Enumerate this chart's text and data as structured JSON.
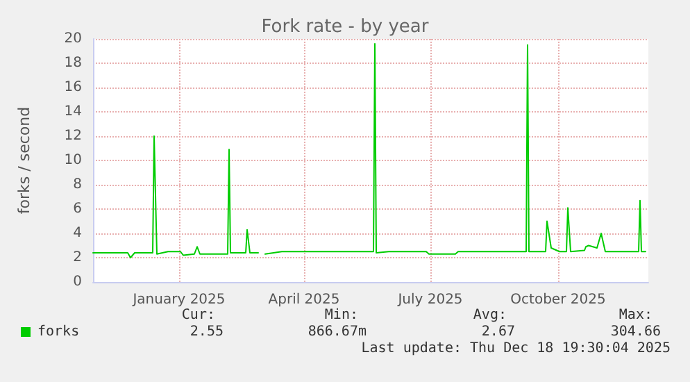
{
  "chart_data": {
    "type": "line",
    "title": "Fork rate - by year",
    "ylabel": "forks / second",
    "xlim": [
      "2024-11-15",
      "2025-12-20"
    ],
    "ylim": [
      0,
      20
    ],
    "yticks": [
      0,
      2,
      4,
      6,
      8,
      10,
      12,
      14,
      16,
      18,
      20
    ],
    "xticks": [
      {
        "value": "2025-01-16",
        "label": "January 2025"
      },
      {
        "value": "2025-04-16",
        "label": "April 2025"
      },
      {
        "value": "2025-07-16",
        "label": "July 2025"
      },
      {
        "value": "2025-10-16",
        "label": "October 2025"
      }
    ],
    "grid": true,
    "legend": "bottom left",
    "marker": "none",
    "line_style": "solid",
    "series": [
      {
        "name": "forks",
        "color": "#00cc00",
        "x": [
          "2024-11-15",
          "2024-12-10",
          "2024-12-12",
          "2024-12-15",
          "2024-12-28",
          "2024-12-29",
          "2024-12-31",
          "2025-01-08",
          "2025-01-17",
          "2025-01-19",
          "2025-01-27",
          "2025-01-29",
          "2025-01-31",
          "2025-02-20",
          "2025-02-21",
          "2025-02-22",
          "2025-03-05",
          "2025-03-06",
          "2025-03-08",
          "2025-03-14",
          "2025-03-16",
          "2025-03-19",
          "2025-03-31",
          "2025-06-05",
          "2025-06-06",
          "2025-06-07",
          "2025-06-16",
          "2025-07-13",
          "2025-07-15",
          "2025-08-03",
          "2025-08-05",
          "2025-09-23",
          "2025-09-24",
          "2025-09-25",
          "2025-10-07",
          "2025-10-08",
          "2025-10-11",
          "2025-10-17",
          "2025-10-22",
          "2025-10-23",
          "2025-10-25",
          "2025-11-04",
          "2025-11-05",
          "2025-11-07",
          "2025-11-13",
          "2025-11-16",
          "2025-11-19",
          "2025-12-13",
          "2025-12-14",
          "2025-12-15",
          "2025-12-18"
        ],
        "values": [
          2.4,
          2.4,
          2.0,
          2.4,
          2.4,
          12,
          2.3,
          2.5,
          2.5,
          2.2,
          2.3,
          2.9,
          2.3,
          2.3,
          10.9,
          2.4,
          2.4,
          4.3,
          2.4,
          2.4,
          null,
          2.3,
          2.5,
          2.5,
          19.6,
          2.4,
          2.5,
          2.5,
          2.3,
          2.3,
          2.5,
          2.5,
          19.5,
          2.5,
          2.5,
          5.0,
          2.8,
          2.5,
          2.5,
          6.1,
          2.5,
          2.6,
          2.9,
          3.0,
          2.8,
          4.0,
          2.5,
          2.5,
          6.7,
          2.5,
          2.5
        ]
      }
    ],
    "annotations": [
      "Cur:",
      "Min:",
      "Avg:",
      "Max:",
      "2.55",
      "866.67m",
      "2.67",
      "304.66",
      "Last update: Thu Dec 18 19:30:04 2025"
    ]
  }
}
